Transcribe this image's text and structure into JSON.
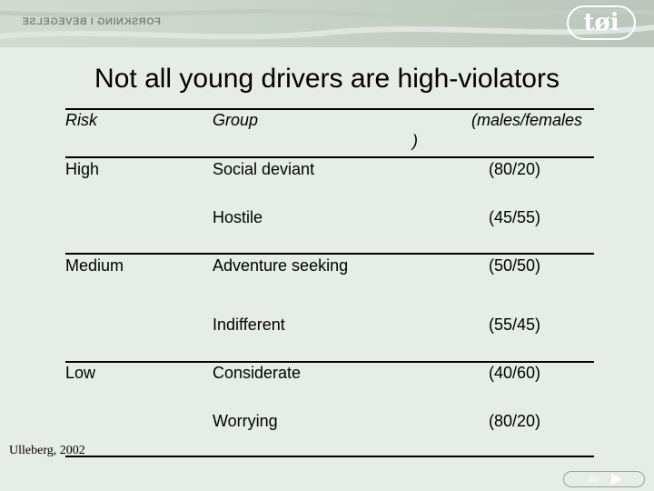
{
  "header": {
    "tagline": "FORSKNING I BEVEGELSE",
    "logo_text": "tøi"
  },
  "title": "Not all young drivers are high-violators",
  "table": {
    "headers": {
      "risk": "Risk",
      "group": "Group",
      "ratio": "(males/females",
      "ratio_cont": ")"
    },
    "rows": [
      {
        "risk": "High",
        "group": "Social deviant",
        "ratio": "(80/20)"
      },
      {
        "risk": "",
        "group": "Hostile",
        "ratio": "(45/55)"
      },
      {
        "risk": "Medium",
        "group": "Adventure seeking",
        "ratio": "(50/50)"
      },
      {
        "risk": "",
        "group": "Indifferent",
        "ratio": "(55/45)"
      },
      {
        "risk": "Low",
        "group": "Considerate",
        "ratio": "(40/60)"
      },
      {
        "risk": "",
        "group": "Worrying",
        "ratio": "(80/20)"
      }
    ]
  },
  "source": "Ulleberg, 2002",
  "nav": {
    "page": "30"
  }
}
